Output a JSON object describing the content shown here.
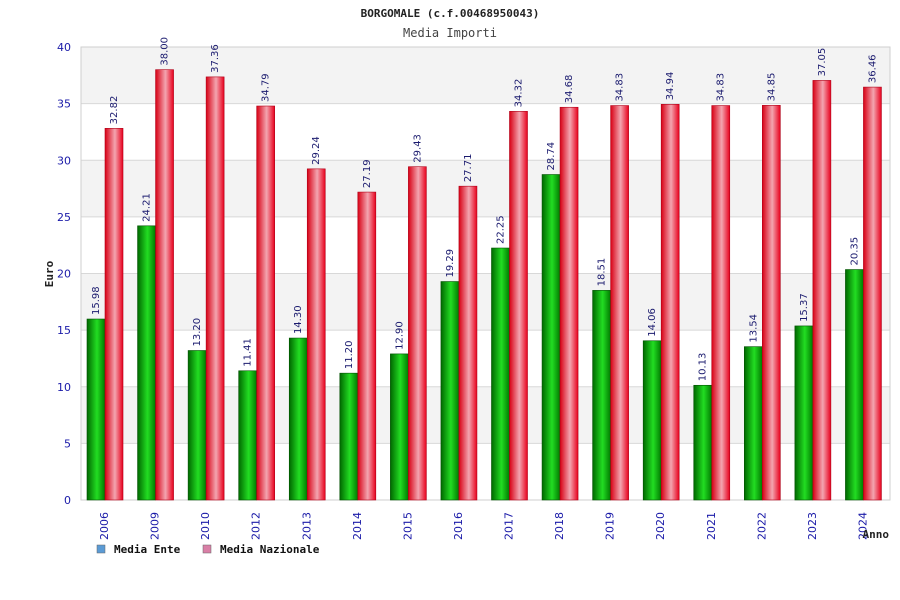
{
  "chart_data": {
    "type": "bar",
    "title": "BORGOMALE (c.f.00468950043)",
    "subtitle": "Media Importi",
    "xlabel": "Anno",
    "ylabel": "Euro",
    "ylim": [
      0,
      40
    ],
    "yticks": [
      0,
      5,
      10,
      15,
      20,
      25,
      30,
      35,
      40
    ],
    "grid": true,
    "legend_position": "bottom-left",
    "categories": [
      "2006",
      "2009",
      "2010",
      "2012",
      "2013",
      "2014",
      "2015",
      "2016",
      "2017",
      "2018",
      "2019",
      "2020",
      "2021",
      "2022",
      "2023",
      "2024"
    ],
    "series": [
      {
        "name": "Media Ente",
        "color": "#00a000",
        "legend_color": "#5b9bd5",
        "values": [
          15.98,
          24.21,
          13.2,
          11.41,
          14.3,
          11.2,
          12.9,
          19.29,
          22.25,
          28.74,
          18.51,
          14.06,
          10.13,
          13.54,
          15.37,
          20.35
        ],
        "labels": [
          "15.98",
          "24.21",
          "13.20",
          "11.41",
          "14.30",
          "11.20",
          "12.90",
          "19.29",
          "22.25",
          "28.74",
          "18.51",
          "14.06",
          "10.13",
          "13.54",
          "15.37",
          "20.35"
        ]
      },
      {
        "name": "Media Nazionale",
        "color": "#e8001c",
        "legend_color": "#d97fa6",
        "values": [
          32.82,
          38.0,
          37.36,
          34.79,
          29.24,
          27.19,
          29.43,
          27.71,
          34.32,
          34.68,
          34.83,
          34.94,
          34.83,
          34.85,
          37.05,
          36.46
        ],
        "labels": [
          "32.82",
          "38.00",
          "37.36",
          "34.79",
          "29.24",
          "27.19",
          "29.43",
          "27.71",
          "34.32",
          "34.68",
          "34.83",
          "34.94",
          "34.83",
          "34.85",
          "37.05",
          "36.46"
        ]
      }
    ]
  }
}
